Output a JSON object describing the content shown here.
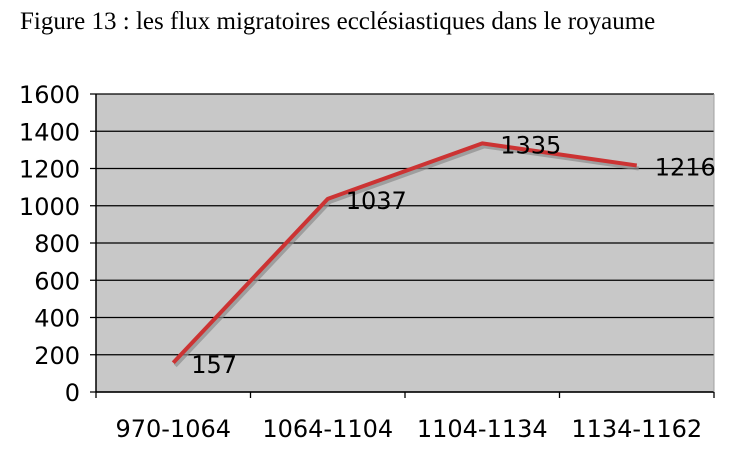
{
  "figure": {
    "title": "Figure 13 : les flux migratoires ecclésiastiques dans le royaume"
  },
  "colors": {
    "plot_background": "#c8c8c8",
    "line": "#cc3333",
    "shadow": "#8c8c8c",
    "grid": "#000000"
  },
  "chart_data": {
    "type": "line",
    "title": "Figure 13 : les flux migratoires ecclésiastiques dans le royaume",
    "categories": [
      "970-1064",
      "1064-1104",
      "1104-1134",
      "1134-1162"
    ],
    "series": [
      {
        "values": [
          157,
          1037,
          1335,
          1216
        ]
      }
    ],
    "data_labels": [
      "157",
      "1037",
      "1335",
      "1216"
    ],
    "y_ticks": [
      0,
      200,
      400,
      600,
      800,
      1000,
      1200,
      1400,
      1600
    ],
    "ylim": [
      0,
      1600
    ],
    "xlabel": "",
    "ylabel": "",
    "grid": true,
    "legend": "none"
  }
}
